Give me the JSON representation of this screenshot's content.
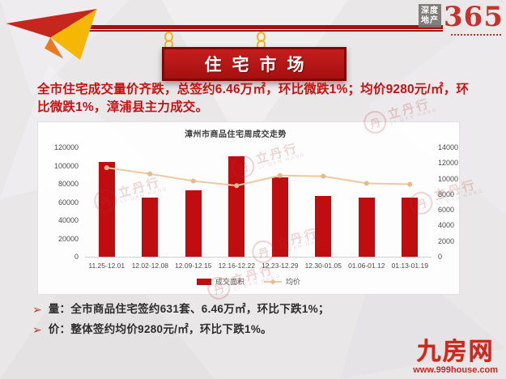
{
  "header": {
    "brand": {
      "box_line1": "深度",
      "box_line2": "地产",
      "number": "365"
    },
    "section_title": "住宅市场"
  },
  "summary": {
    "text": "全市住宅成交量价齐跌，总签约6.46万㎡，环比微跌1%；均价9280元/㎡，环比微跌1%，漳浦县主力成交。"
  },
  "chart_data": {
    "type": "bar",
    "title": "漳州市商品住宅周成交走势",
    "categories": [
      "11.25-12.01",
      "12.02-12.08",
      "12.09-12.15",
      "12.16-12.22",
      "12.23-12.29",
      "12.30-01.05",
      "01.06-01.12",
      "01.13-01.19"
    ],
    "series": [
      {
        "name": "成交面积",
        "type": "bar",
        "axis": "left",
        "color": "#c00d10",
        "values": [
          104000,
          65000,
          73000,
          110000,
          87000,
          67000,
          65300,
          64600
        ]
      },
      {
        "name": "均价",
        "type": "line",
        "axis": "right",
        "color": "#ecc9a2",
        "values": [
          11400,
          10600,
          9700,
          9100,
          10400,
          10300,
          9400,
          9280
        ]
      }
    ],
    "left_axis": {
      "min": 0,
      "max": 120000,
      "step": 20000
    },
    "right_axis": {
      "min": 0,
      "max": 14000,
      "step": 2000
    },
    "legend_position": "bottom",
    "grid": false
  },
  "bullets": [
    {
      "marker": "➢",
      "text": "量：全市商品住宅签约631套、6.46万㎡，环比下跌1%；"
    },
    {
      "marker": "➢",
      "text": "价：整体签约均价9280元/㎡，环比下跌1%。"
    }
  ],
  "footer": {
    "logo": "九房网",
    "website": "www.999house.com"
  },
  "watermark": {
    "glyph": "丹",
    "text": "立丹行",
    "latin": "LI DAN HANG"
  }
}
